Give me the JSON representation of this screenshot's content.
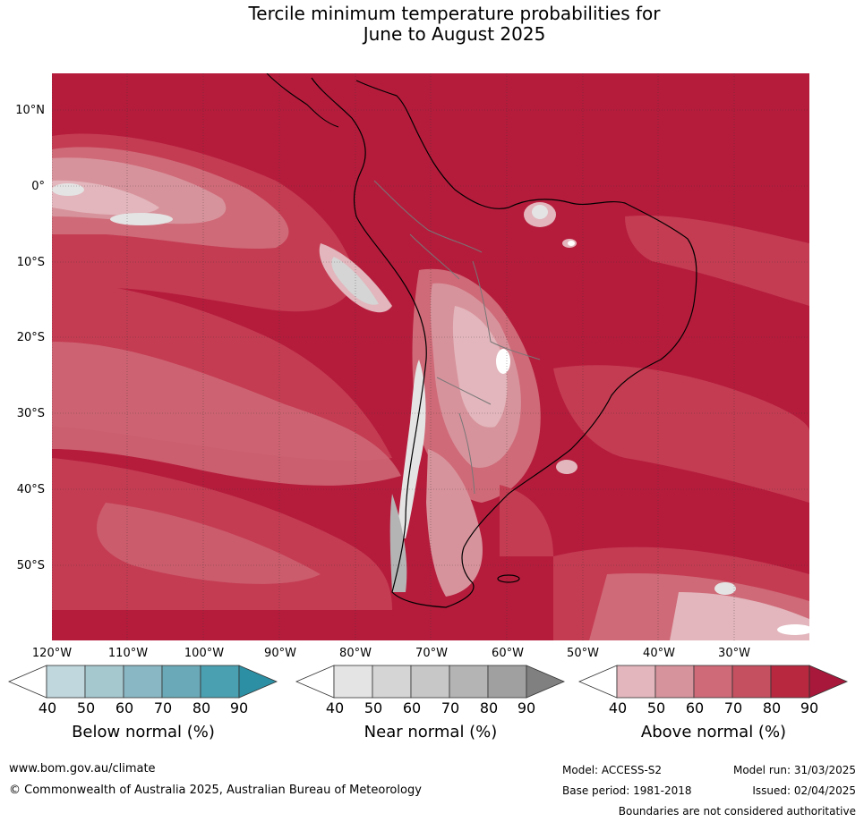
{
  "title": {
    "line1": "Tercile minimum temperature probabilities for",
    "line2": "June to August 2025"
  },
  "axes": {
    "lat_labels": [
      "10°N",
      "0°",
      "10°S",
      "20°S",
      "30°S",
      "40°S",
      "50°S"
    ],
    "lon_labels": [
      "120°W",
      "110°W",
      "100°W",
      "90°W",
      "80°W",
      "70°W",
      "60°W",
      "50°W",
      "40°W",
      "30°W"
    ]
  },
  "map": {
    "region": "South America and surrounding oceans",
    "variable": "Tercile minimum temperature probabilities",
    "period": "June to August 2025",
    "dominant_category": "Above normal",
    "colors": {
      "above_90": "#b51c3c",
      "above_80": "#c43c52",
      "above_70": "#cf6a78",
      "above_60": "#d7939c",
      "above_50": "#e2b6bc",
      "near_50": "#e4e4e4",
      "near_60": "#d2d2d2",
      "near_80": "#a0a0a0",
      "white": "#ffffff"
    }
  },
  "legends": [
    {
      "label": "Below normal (%)",
      "ticks": [
        "40",
        "50",
        "60",
        "70",
        "80",
        "90"
      ],
      "colors": [
        "#ffffff",
        "#bfd7dd",
        "#a5c8cf",
        "#89b8c4",
        "#6aaab8",
        "#4a9fb0",
        "#2d8fa3"
      ]
    },
    {
      "label": "Near normal (%)",
      "ticks": [
        "40",
        "50",
        "60",
        "70",
        "80",
        "90"
      ],
      "colors": [
        "#ffffff",
        "#e4e4e4",
        "#d5d5d5",
        "#c7c7c7",
        "#b4b4b4",
        "#a0a0a0",
        "#808080"
      ]
    },
    {
      "label": "Above normal (%)",
      "ticks": [
        "40",
        "50",
        "60",
        "70",
        "80",
        "90"
      ],
      "colors": [
        "#ffffff",
        "#e2b6bc",
        "#d7939c",
        "#cf6a78",
        "#c5505f",
        "#b8283f",
        "#a7183a"
      ]
    }
  ],
  "footer": {
    "website": "www.bom.gov.au/climate",
    "copyright": "© Commonwealth of Australia 2025, Australian Bureau of Meteorology",
    "model": "Model: ACCESS-S2",
    "model_run": "Model run: 31/03/2025",
    "base_period": "Base period: 1981-2018",
    "issued": "Issued: 02/04/2025",
    "disclaimer": "Boundaries are not considered authoritative"
  }
}
